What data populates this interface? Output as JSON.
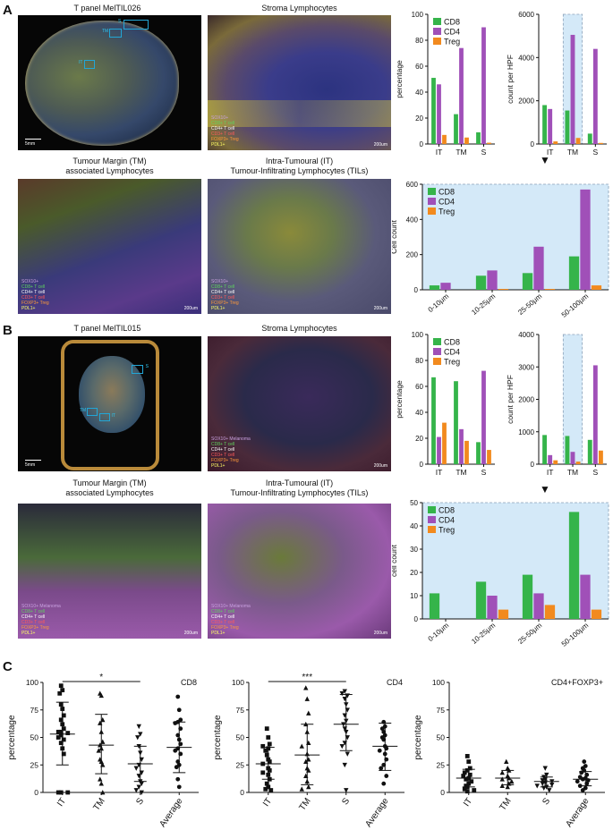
{
  "colors": {
    "cd8": "#35b44a",
    "cd4": "#a050b8",
    "treg": "#f28a1e",
    "highlight": "#d4e9f8"
  },
  "panel_labels": {
    "a": "A",
    "b": "B",
    "c": "C"
  },
  "panelA": {
    "tissue_title": "T panel MelTIL026",
    "stroma_title": "Stroma Lymphocytes",
    "tm_title_1": "Tumour Margin (TM)",
    "tm_title_2": "associated Lymphocytes",
    "it_title_1": "Intra-Tumoural (IT)",
    "it_title_2": "Tumour-Infiltrating Lymphocytes (TILs)",
    "scale_large": "5mm",
    "scale_small": "200um",
    "roi_s": "S",
    "roi_tm": "TM",
    "roi_it": "IT",
    "legend": [
      "SOX10+",
      "CD8+ T cell",
      "CD4+ T cell",
      "CD3+ T cell",
      "FOXP3+ Treg",
      "PDL1+"
    ]
  },
  "panelB": {
    "tissue_title": "T panel MelTIL015",
    "stroma_title": "Stroma Lymphocytes",
    "tm_title_1": "Tumour Margin (TM)",
    "tm_title_2": "associated Lymphocytes",
    "it_title_1": "Intra-Tumoural (IT)",
    "it_title_2": "Tumour-Infiltrating Lymphocytes (TILs)",
    "scale_large": "5mm",
    "scale_small": "200um",
    "roi_s": "S",
    "roi_tm": "TM",
    "roi_it": "IT",
    "legend": [
      "SOX10+ Melanoma",
      "CD8+ T cell",
      "CD4+ T cell",
      "CD3+ T cell",
      "FOXP3+ Treg",
      "PDL1+"
    ]
  },
  "arrow_glyph": "▼",
  "chart_data": [
    {
      "id": "A_pct",
      "type": "bar",
      "title": "",
      "xlabel": "",
      "ylabel": "percentage",
      "categories": [
        "IT",
        "TM",
        "S"
      ],
      "ylim": [
        0,
        100
      ],
      "yticks": [
        0,
        20,
        40,
        60,
        80,
        100
      ],
      "series": [
        {
          "name": "CD8",
          "values": [
            51,
            23,
            9
          ]
        },
        {
          "name": "CD4",
          "values": [
            46,
            74,
            90
          ]
        },
        {
          "name": "Treg",
          "values": [
            7,
            5,
            1
          ]
        }
      ],
      "legend": "top-left",
      "highlight": ""
    },
    {
      "id": "A_hpf",
      "type": "bar",
      "title": "",
      "xlabel": "",
      "ylabel": "count per HPF",
      "categories": [
        "IT",
        "TM",
        "S"
      ],
      "ylim": [
        0,
        6000
      ],
      "yticks": [
        0,
        2000,
        4000,
        6000
      ],
      "series": [
        {
          "name": "CD8",
          "values": [
            1800,
            1550,
            480
          ]
        },
        {
          "name": "CD4",
          "values": [
            1620,
            5050,
            4400
          ]
        },
        {
          "name": "Treg",
          "values": [
            120,
            280,
            50
          ]
        }
      ],
      "legend": "none",
      "highlight": "TM"
    },
    {
      "id": "A_dist",
      "type": "bar",
      "title": "",
      "xlabel": "",
      "ylabel": "Cell count",
      "categories": [
        "0-10μm",
        "10-25μm",
        "25-50μm",
        "50-100μm"
      ],
      "ylim": [
        0,
        600
      ],
      "yticks": [
        0,
        200,
        400,
        600
      ],
      "series": [
        {
          "name": "CD8",
          "values": [
            25,
            80,
            95,
            190
          ]
        },
        {
          "name": "CD4",
          "values": [
            40,
            110,
            245,
            570
          ]
        },
        {
          "name": "Treg",
          "values": [
            0,
            5,
            5,
            25
          ]
        }
      ],
      "legend": "top-left",
      "highlight": "all"
    },
    {
      "id": "B_pct",
      "type": "bar",
      "title": "",
      "xlabel": "",
      "ylabel": "percentage",
      "categories": [
        "IT",
        "TM",
        "S"
      ],
      "ylim": [
        0,
        100
      ],
      "yticks": [
        0,
        20,
        40,
        60,
        80,
        100
      ],
      "series": [
        {
          "name": "CD8",
          "values": [
            67,
            64,
            17
          ]
        },
        {
          "name": "CD4",
          "values": [
            21,
            27,
            72
          ]
        },
        {
          "name": "Treg",
          "values": [
            32,
            18,
            11
          ]
        }
      ],
      "legend": "top-left",
      "highlight": ""
    },
    {
      "id": "B_hpf",
      "type": "bar",
      "title": "",
      "xlabel": "",
      "ylabel": "count per HPF",
      "categories": [
        "IT",
        "TM",
        "S"
      ],
      "ylim": [
        0,
        4000
      ],
      "yticks": [
        0,
        1000,
        2000,
        3000,
        4000
      ],
      "series": [
        {
          "name": "CD8",
          "values": [
            900,
            870,
            750
          ]
        },
        {
          "name": "CD4",
          "values": [
            280,
            380,
            3050
          ]
        },
        {
          "name": "Treg",
          "values": [
            120,
            80,
            420
          ]
        }
      ],
      "legend": "none",
      "highlight": "TM"
    },
    {
      "id": "B_dist",
      "type": "bar",
      "title": "",
      "xlabel": "",
      "ylabel": "cell count",
      "categories": [
        "0-10μm",
        "10-25μm",
        "25-50μm",
        "50-100μm"
      ],
      "ylim": [
        0,
        50
      ],
      "yticks": [
        0,
        10,
        20,
        30,
        40,
        50
      ],
      "series": [
        {
          "name": "CD8",
          "values": [
            11,
            16,
            19,
            46
          ]
        },
        {
          "name": "CD4",
          "values": [
            0,
            10,
            11,
            19
          ]
        },
        {
          "name": "Treg",
          "values": [
            0,
            4,
            6,
            4
          ]
        }
      ],
      "legend": "top-left",
      "highlight": "all"
    },
    {
      "id": "C_cd8",
      "type": "scatter",
      "title": "CD8",
      "ylabel": "percentage",
      "categories": [
        "IT",
        "TM",
        "S",
        "Average"
      ],
      "ylim": [
        0,
        100
      ],
      "yticks": [
        0,
        25,
        50,
        75,
        100
      ],
      "marker_shapes": [
        "square",
        "triangle-up",
        "triangle-down",
        "circle"
      ],
      "means": [
        53,
        43,
        26,
        41
      ],
      "sd_low": [
        25,
        17,
        10,
        18
      ],
      "sd_high": [
        82,
        71,
        42,
        64
      ],
      "points": [
        [
          97,
          93,
          90,
          80,
          76,
          70,
          66,
          62,
          58,
          55,
          55,
          54,
          52,
          50,
          48,
          45,
          40,
          35,
          0,
          0,
          0
        ],
        [
          90,
          88,
          66,
          63,
          55,
          46,
          43,
          40,
          38,
          30,
          28,
          25,
          12,
          8,
          0
        ],
        [
          60,
          53,
          50,
          42,
          36,
          30,
          25,
          22,
          18,
          15,
          10,
          8,
          5,
          2,
          0
        ],
        [
          87,
          75,
          66,
          64,
          63,
          58,
          52,
          48,
          44,
          40,
          38,
          35,
          28,
          25,
          23,
          12,
          5
        ]
      ],
      "significance": {
        "label": "*",
        "from": "IT",
        "to": "S"
      }
    },
    {
      "id": "C_cd4",
      "type": "scatter",
      "title": "CD4",
      "ylabel": "percentage",
      "categories": [
        "IT",
        "TM",
        "S",
        "Average"
      ],
      "ylim": [
        0,
        100
      ],
      "yticks": [
        0,
        25,
        50,
        75,
        100
      ],
      "marker_shapes": [
        "square",
        "triangle-up",
        "triangle-down",
        "circle"
      ],
      "means": [
        26,
        34,
        62,
        42
      ],
      "sd_low": [
        12,
        7,
        38,
        20
      ],
      "sd_high": [
        41,
        62,
        89,
        63
      ],
      "points": [
        [
          58,
          50,
          44,
          42,
          40,
          38,
          34,
          30,
          28,
          26,
          22,
          20,
          18,
          16,
          12,
          8,
          5,
          3,
          2
        ],
        [
          95,
          85,
          72,
          62,
          55,
          45,
          42,
          35,
          30,
          28,
          22,
          20,
          15,
          10,
          5,
          3
        ],
        [
          92,
          90,
          88,
          85,
          80,
          75,
          70,
          65,
          62,
          58,
          55,
          50,
          45,
          42,
          35,
          25,
          2
        ],
        [
          64,
          60,
          58,
          55,
          52,
          50,
          48,
          42,
          40,
          38,
          35,
          30,
          25,
          22,
          15,
          8
        ]
      ],
      "significance": {
        "label": "***",
        "from": "IT",
        "to": "S"
      }
    },
    {
      "id": "C_foxp3",
      "type": "scatter",
      "title": "CD4+FOXP3+",
      "ylabel": "percentage",
      "categories": [
        "IT",
        "TM",
        "S",
        "Average"
      ],
      "ylim": [
        0,
        100
      ],
      "yticks": [
        0,
        25,
        50,
        75,
        100
      ],
      "marker_shapes": [
        "square",
        "triangle-up",
        "triangle-down",
        "circle"
      ],
      "means": [
        13,
        13,
        10,
        12
      ],
      "sd_low": [
        5,
        7,
        5,
        6
      ],
      "sd_high": [
        21,
        20,
        14,
        19
      ],
      "points": [
        [
          33,
          28,
          22,
          20,
          18,
          16,
          15,
          13,
          12,
          10,
          8,
          6,
          5,
          3,
          2,
          1
        ],
        [
          28,
          22,
          20,
          18,
          15,
          13,
          12,
          10,
          8,
          6,
          5
        ],
        [
          22,
          16,
          14,
          12,
          11,
          10,
          9,
          8,
          7,
          6,
          5,
          4,
          2
        ],
        [
          28,
          24,
          22,
          20,
          18,
          16,
          14,
          13,
          12,
          11,
          10,
          8,
          6,
          4,
          2
        ]
      ],
      "significance": null
    }
  ]
}
